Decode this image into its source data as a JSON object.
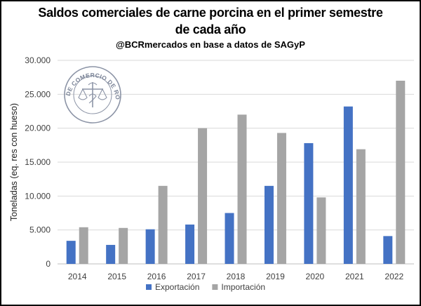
{
  "chart_data": {
    "type": "bar",
    "title_line1": "Saldos comerciales de carne porcina en el primer semestre",
    "title_line2": "de cada año",
    "subtitle": "@BCRmercados en base a datos de SAGyP",
    "ylabel": "Toneladas (eq. res con hueso)",
    "xlabel": "",
    "categories": [
      "2014",
      "2015",
      "2016",
      "2017",
      "2018",
      "2019",
      "2020",
      "2021",
      "2022"
    ],
    "series": [
      {
        "name": "Exportación",
        "color": "#4472C4",
        "values": [
          3400,
          2800,
          5100,
          5800,
          7500,
          11500,
          17800,
          23200,
          4100
        ]
      },
      {
        "name": "Importación",
        "color": "#A5A5A5",
        "values": [
          5400,
          5300,
          11500,
          20000,
          22000,
          19300,
          9800,
          16900,
          27000
        ]
      }
    ],
    "ylim": [
      0,
      30000
    ],
    "yticks": [
      "0",
      "5.000",
      "10.000",
      "15.000",
      "20.000",
      "25.000",
      "30.000"
    ],
    "grid": true,
    "legend": "bottom",
    "logo_text": "BOLSA DE COMERCIO DE ROSARIO"
  }
}
